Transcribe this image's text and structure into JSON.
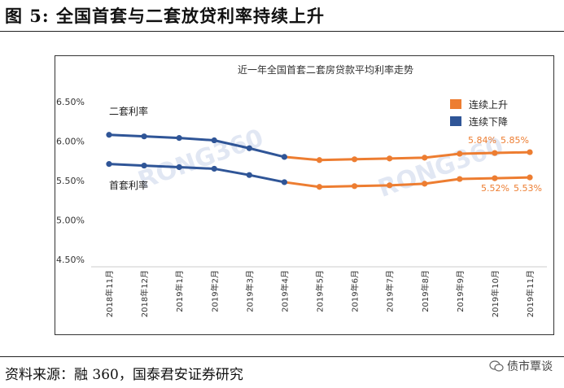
{
  "figure": {
    "title": "图 5:  全国首套与二套放贷利率持续上升",
    "source": "资料来源：融 360，国泰君安证券研究",
    "account_label": "债市覃谈"
  },
  "colors": {
    "rising": "#ED7D31",
    "falling": "#2F5597",
    "watermark": "#c8d3ea"
  },
  "chart_data": {
    "type": "line",
    "title": "近一年全国首套二套房贷款平均利率走势",
    "x": [
      "2018年11月",
      "2018年12月",
      "2019年1月",
      "2019年2月",
      "2019年3月",
      "2019年4月",
      "2019年5月",
      "2019年6月",
      "2019年7月",
      "2019年8月",
      "2019年9月",
      "2019年10月",
      "2019年11月"
    ],
    "yticks": [
      "6.50%",
      "6.00%",
      "5.50%",
      "5.00%",
      "4.50%"
    ],
    "ylim": [
      4.5,
      6.5
    ],
    "series": [
      {
        "name": "二套利率",
        "values": [
          6.08,
          6.06,
          6.04,
          6.01,
          5.91,
          5.8,
          5.76,
          5.77,
          5.78,
          5.79,
          5.84,
          5.85,
          5.86
        ]
      },
      {
        "name": "首套利率",
        "values": [
          5.71,
          5.69,
          5.67,
          5.65,
          5.57,
          5.48,
          5.42,
          5.43,
          5.44,
          5.46,
          5.52,
          5.53,
          5.54
        ]
      }
    ],
    "falling_until_index": 5,
    "legend": [
      "连续上升",
      "连续下降"
    ],
    "legend_position": "top-right",
    "annotations": [
      "5.84%",
      "5.85%",
      "5.52%",
      "5.53%"
    ],
    "watermark": "RONG360",
    "grid": false
  }
}
